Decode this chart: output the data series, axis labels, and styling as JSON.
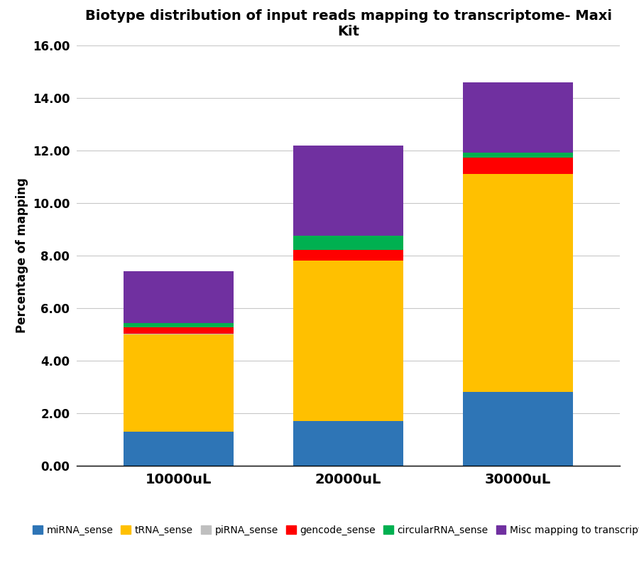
{
  "categories": [
    "10000uL",
    "20000uL",
    "30000uL"
  ],
  "series": [
    {
      "label": "miRNA_sense",
      "color": "#2E75B6",
      "values": [
        1.3,
        1.7,
        2.8
      ]
    },
    {
      "label": "tRNA_sense",
      "color": "#FFC000",
      "values": [
        3.7,
        6.1,
        8.3
      ]
    },
    {
      "label": "piRNA_sense",
      "color": "#bfbfbf",
      "values": [
        0.02,
        0.02,
        0.02
      ]
    },
    {
      "label": "gencode_sense",
      "color": "#FF0000",
      "values": [
        0.25,
        0.4,
        0.6
      ]
    },
    {
      "label": "circularRNA_sense",
      "color": "#00B050",
      "values": [
        0.15,
        0.55,
        0.2
      ]
    },
    {
      "label": "Misc mapping to transcriptome",
      "color": "#7030A0",
      "values": [
        1.98,
        3.43,
        2.68
      ]
    }
  ],
  "title": "Biotype distribution of input reads mapping to transcriptome- Maxi\nKit",
  "ylabel": "Percentage of mapping",
  "ylim": [
    0,
    16
  ],
  "yticks": [
    0.0,
    2.0,
    4.0,
    6.0,
    8.0,
    10.0,
    12.0,
    14.0,
    16.0
  ],
  "bar_width": 0.65,
  "background_color": "#ffffff",
  "grid_color": "#c8c8c8",
  "title_fontsize": 14,
  "axis_label_fontsize": 12,
  "tick_fontsize": 12,
  "legend_fontsize": 10
}
